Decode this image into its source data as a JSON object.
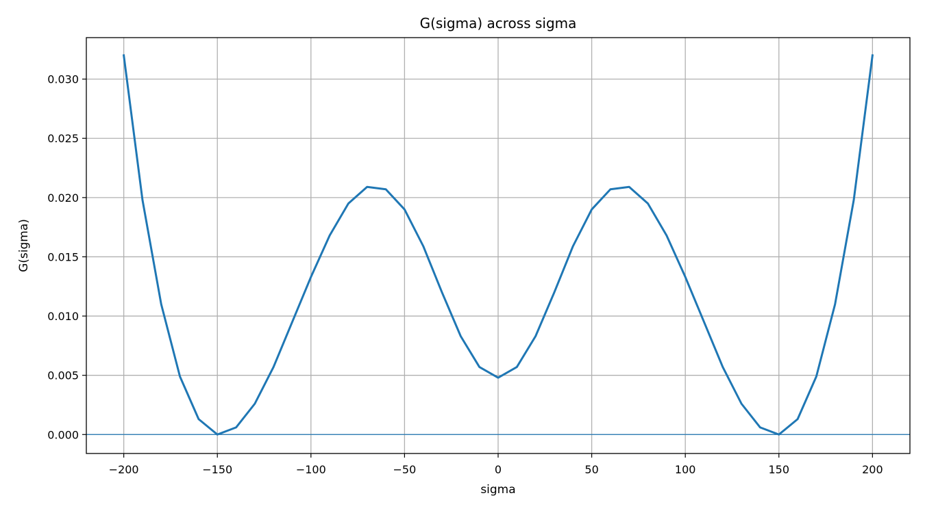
{
  "chart_data": {
    "type": "line",
    "title": "G(sigma) across sigma",
    "xlabel": "sigma",
    "ylabel": "G(sigma)",
    "xlim": [
      -220,
      220
    ],
    "ylim": [
      -0.0016,
      0.0335
    ],
    "xticks": [
      -200,
      -150,
      -100,
      -50,
      0,
      50,
      100,
      150,
      200
    ],
    "xtick_labels": [
      "−200",
      "−150",
      "−100",
      "−50",
      "0",
      "50",
      "100",
      "150",
      "200"
    ],
    "yticks": [
      0.0,
      0.005,
      0.01,
      0.015,
      0.02,
      0.025,
      0.03
    ],
    "ytick_labels": [
      "0.000",
      "0.005",
      "0.010",
      "0.015",
      "0.020",
      "0.025",
      "0.030"
    ],
    "grid": true,
    "hline": 0.0,
    "colors": {
      "line": "#1f77b4",
      "hline": "#1f77b4"
    },
    "series": [
      {
        "x": [
          -200,
          -190,
          -180,
          -170,
          -160,
          -150,
          -140,
          -130,
          -120,
          -110,
          -100,
          -90,
          -80,
          -70,
          -60,
          -50,
          -40,
          -30,
          -20,
          -10,
          0,
          10,
          20,
          30,
          40,
          50,
          60,
          70,
          80,
          90,
          100,
          110,
          120,
          130,
          140,
          150,
          160,
          170,
          180,
          190,
          200
        ],
        "y": [
          0.032,
          0.0198,
          0.011,
          0.0049,
          0.0013,
          0.0,
          0.0006,
          0.0026,
          0.0057,
          0.0095,
          0.0133,
          0.0168,
          0.0195,
          0.0209,
          0.0207,
          0.019,
          0.0159,
          0.012,
          0.0083,
          0.0057,
          0.0048,
          0.0057,
          0.0083,
          0.012,
          0.0159,
          0.019,
          0.0207,
          0.0209,
          0.0195,
          0.0168,
          0.0133,
          0.0095,
          0.0057,
          0.0026,
          0.0006,
          0.0,
          0.0013,
          0.0049,
          0.011,
          0.0198,
          0.032
        ]
      }
    ]
  }
}
